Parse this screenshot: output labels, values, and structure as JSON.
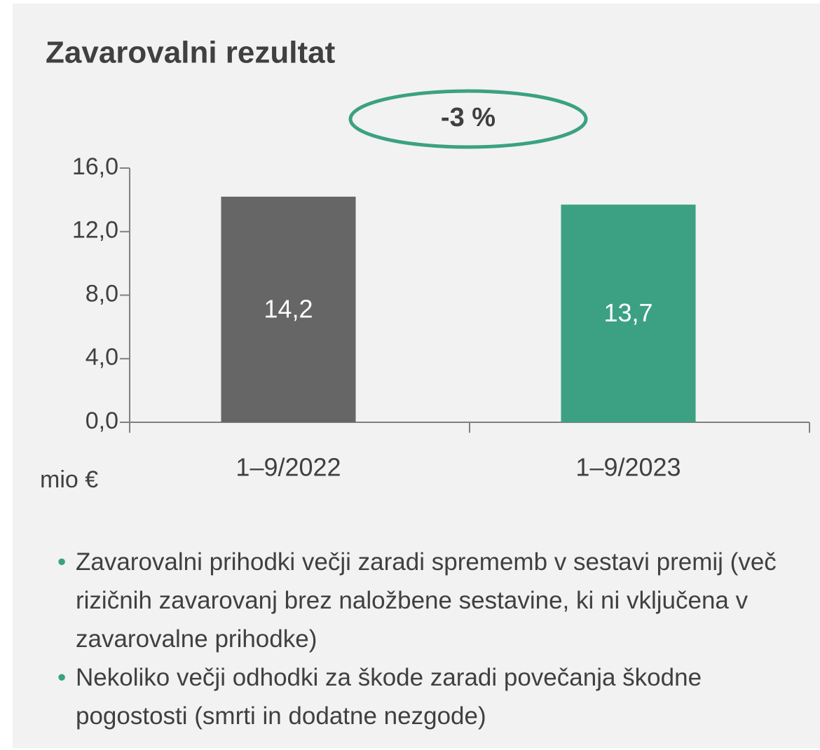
{
  "chart_data": {
    "type": "bar",
    "title": "Zavarovalni rezultat",
    "annotation": "-3 %",
    "categories": [
      "1–9/2022",
      "1–9/2023"
    ],
    "values": [
      14.2,
      13.7
    ],
    "value_labels": [
      "14,2",
      "13,7"
    ],
    "colors": [
      "#666666",
      "#3ba182"
    ],
    "y_unit_label": "mio €",
    "ylim": [
      0,
      16
    ],
    "yticks": [
      {
        "value": 0,
        "label": "0,0"
      },
      {
        "value": 4,
        "label": "4,0"
      },
      {
        "value": 8,
        "label": "8,0"
      },
      {
        "value": 12,
        "label": "12,0"
      },
      {
        "value": 16,
        "label": "16,0"
      }
    ]
  },
  "bullets": [
    "Zavarovalni prihodki večji zaradi sprememb v sestavi premij (več rizičnih zavarovanj brez naložbene sestavine, ki ni vključena v zavarovalne prihodke)",
    "Nekoliko večji odhodki za škode zaradi povečanja škodne pogostosti (smrti in dodatne nezgode)"
  ]
}
